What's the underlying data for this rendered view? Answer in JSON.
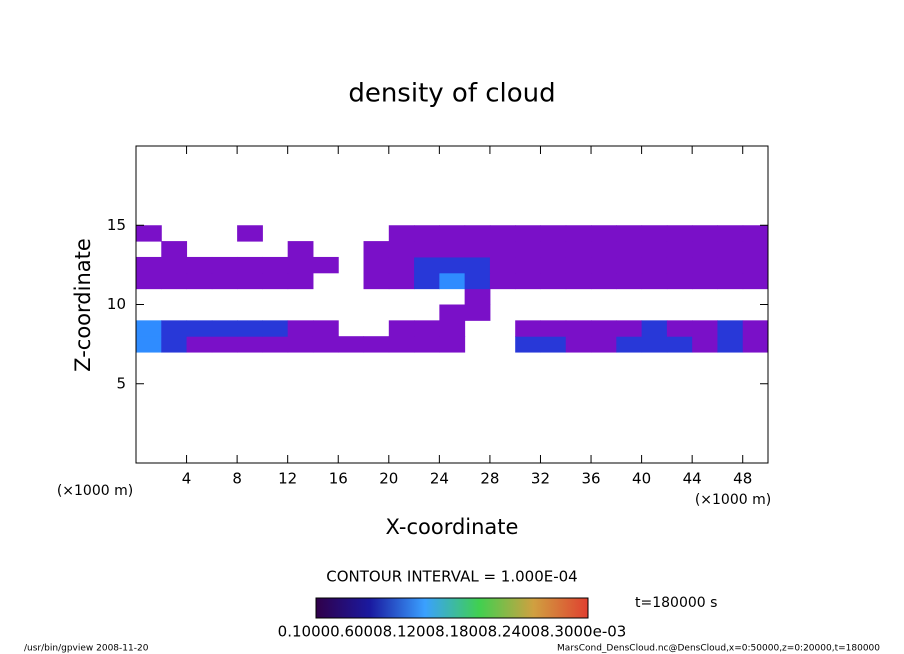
{
  "chart_data": {
    "type": "contour",
    "title": "density of cloud",
    "x_label": "X-coordinate",
    "y_label": "Z-coordinate",
    "x_unit_left": "(×1000 m)",
    "x_unit_right": "(×1000 m)",
    "contour_note": "CONTOUR INTERVAL = 1.000E-04",
    "time_label": "t=180000 s",
    "colorbar_label": "0.10000.60008.12008.18008.24008.3000e-03",
    "footer_left": "/usr/bin/gpview  2008-11-20",
    "footer_right": "MarsCond_DensCloud.nc@DensCloud,x=0:50000,z=0:20000,t=180000",
    "xlim": [
      0,
      50
    ],
    "ylim": [
      0,
      20
    ],
    "xticks": [
      4,
      8,
      12,
      16,
      20,
      24,
      28,
      32,
      36,
      40,
      44,
      48
    ],
    "yticks": [
      5,
      10,
      15
    ],
    "levels": [
      0.0001,
      0.00015,
      0.0002
    ],
    "level_colors": [
      "#7a10c8",
      "#2838d8",
      "#2f8cff"
    ],
    "x": [
      1,
      3,
      5,
      7,
      9,
      11,
      13,
      15,
      17,
      19,
      21,
      23,
      25,
      27,
      29,
      31,
      33,
      35,
      37,
      39,
      41,
      43,
      45,
      47,
      49
    ],
    "y": [
      7.5,
      8.5,
      9.5,
      10.5,
      11.5,
      12.5,
      13.5,
      14.5
    ],
    "z": [
      [
        0.0002,
        0.00015,
        0.0001,
        0.0001,
        0.0001,
        0.0001,
        0.0001,
        0.0001,
        0.0001,
        0.0001,
        0.0001,
        0.0001,
        0.0001,
        0,
        0,
        0.00015,
        0.00015,
        0.0001,
        0.0001,
        0.00015,
        0.00015,
        0.00015,
        0.0001,
        0.00015,
        0.0001
      ],
      [
        0.0002,
        0.00015,
        0.00015,
        0.00015,
        0.00015,
        0.00015,
        0.0001,
        0.0001,
        0,
        0,
        0.0001,
        0.0001,
        0.0001,
        0,
        0,
        0.0001,
        0.0001,
        0.0001,
        0.0001,
        0.0001,
        0.00015,
        0.0001,
        0.0001,
        0.00015,
        0.0001
      ],
      [
        0,
        0,
        0,
        0,
        0,
        0,
        0,
        0,
        0,
        0,
        0,
        0,
        0.0001,
        0.0001,
        0,
        0,
        0,
        0,
        0,
        0,
        0,
        0,
        0,
        0,
        0
      ],
      [
        0,
        0,
        0,
        0,
        0,
        0,
        0,
        0,
        0,
        0,
        0,
        0,
        0,
        0.0001,
        0,
        0,
        0,
        0,
        0,
        0,
        0,
        0,
        0,
        0,
        0
      ],
      [
        0.0001,
        0.0001,
        0.0001,
        0.0001,
        0.0001,
        0.0001,
        0.0001,
        0,
        0,
        0.0001,
        0.0001,
        0.00015,
        0.0002,
        0.00015,
        0.0001,
        0.0001,
        0.0001,
        0.0001,
        0.0001,
        0.0001,
        0.0001,
        0.0001,
        0.0001,
        0.0001,
        0.0001
      ],
      [
        0.0001,
        0.0001,
        0.0001,
        0.0001,
        0.0001,
        0.0001,
        0.0001,
        0.0001,
        0,
        0.0001,
        0.0001,
        0.00015,
        0.00015,
        0.00015,
        0.0001,
        0.0001,
        0.0001,
        0.0001,
        0.0001,
        0.0001,
        0.0001,
        0.0001,
        0.0001,
        0.0001,
        0.0001
      ],
      [
        0,
        0.0001,
        0,
        0,
        0,
        0,
        0.0001,
        0,
        0,
        0.0001,
        0.0001,
        0.0001,
        0.0001,
        0.0001,
        0.0001,
        0.0001,
        0.0001,
        0.0001,
        0.0001,
        0.0001,
        0.0001,
        0.0001,
        0.0001,
        0.0001,
        0.0001
      ],
      [
        0.0001,
        0,
        0,
        0,
        0.0001,
        0,
        0,
        0,
        0,
        0,
        0.0001,
        0.0001,
        0.0001,
        0.0001,
        0.0001,
        0.0001,
        0.0001,
        0.0001,
        0.0001,
        0.0001,
        0.0001,
        0.0001,
        0.0001,
        0.0001,
        0.0001
      ]
    ]
  }
}
